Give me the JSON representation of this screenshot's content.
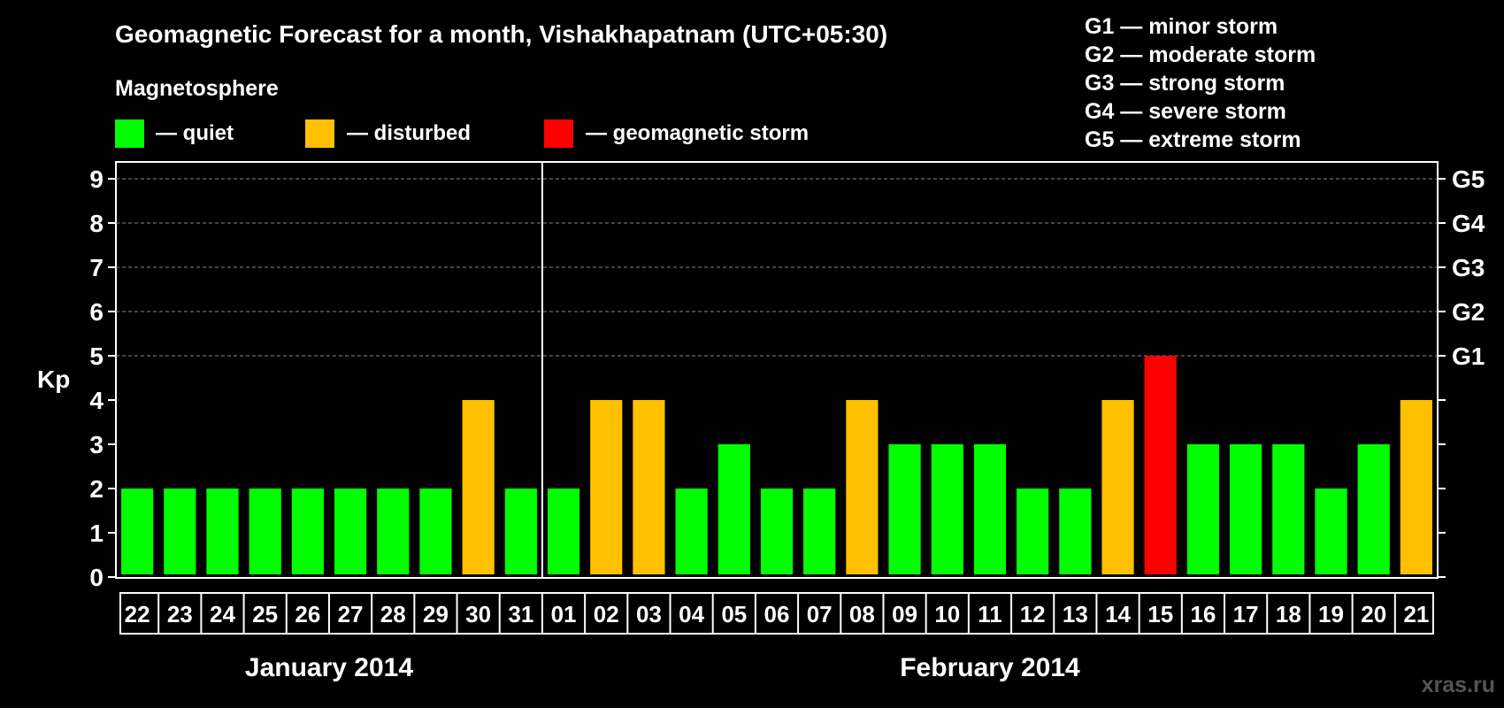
{
  "chart_data": {
    "type": "bar",
    "title": "Geomagnetic Forecast for a month, Vishakhapatnam (UTC+05:30)",
    "legend_title": "Magnetosphere",
    "legend": [
      {
        "label": "— quiet",
        "color": "#00ff00"
      },
      {
        "label": "— disturbed",
        "color": "#ffc000"
      },
      {
        "label": "— geomagnetic storm",
        "color": "#ff0000"
      }
    ],
    "g_legend": [
      "G1 — minor storm",
      "G2 — moderate storm",
      "G3 — strong storm",
      "G4 — severe storm",
      "G5 — extreme storm"
    ],
    "ylabel": "Kp",
    "ylim": [
      0,
      9
    ],
    "yticks": [
      0,
      1,
      2,
      3,
      4,
      5,
      6,
      7,
      8,
      9
    ],
    "right_ticks": [
      {
        "kp": 5,
        "label": "G1"
      },
      {
        "kp": 6,
        "label": "G2"
      },
      {
        "kp": 7,
        "label": "G3"
      },
      {
        "kp": 8,
        "label": "G4"
      },
      {
        "kp": 9,
        "label": "G5"
      }
    ],
    "categories": [
      "22",
      "23",
      "24",
      "25",
      "26",
      "27",
      "28",
      "29",
      "30",
      "31",
      "01",
      "02",
      "03",
      "04",
      "05",
      "06",
      "07",
      "08",
      "09",
      "10",
      "11",
      "12",
      "13",
      "14",
      "15",
      "16",
      "17",
      "18",
      "19",
      "20",
      "21"
    ],
    "values": [
      2,
      2,
      2,
      2,
      2,
      2,
      2,
      2,
      4,
      2,
      2,
      4,
      4,
      2,
      3,
      2,
      2,
      4,
      3,
      3,
      3,
      2,
      2,
      4,
      5,
      3,
      3,
      3,
      2,
      3,
      4
    ],
    "months": [
      {
        "label": "January 2014",
        "start": 0,
        "end": 9
      },
      {
        "label": "February 2014",
        "start": 10,
        "end": 30
      }
    ],
    "gridlines": "dashed at 5–9",
    "colors": {
      "quiet": "#00ff00",
      "disturbed": "#ffc000",
      "storm": "#ff0000"
    }
  },
  "watermark": "xras.ru"
}
